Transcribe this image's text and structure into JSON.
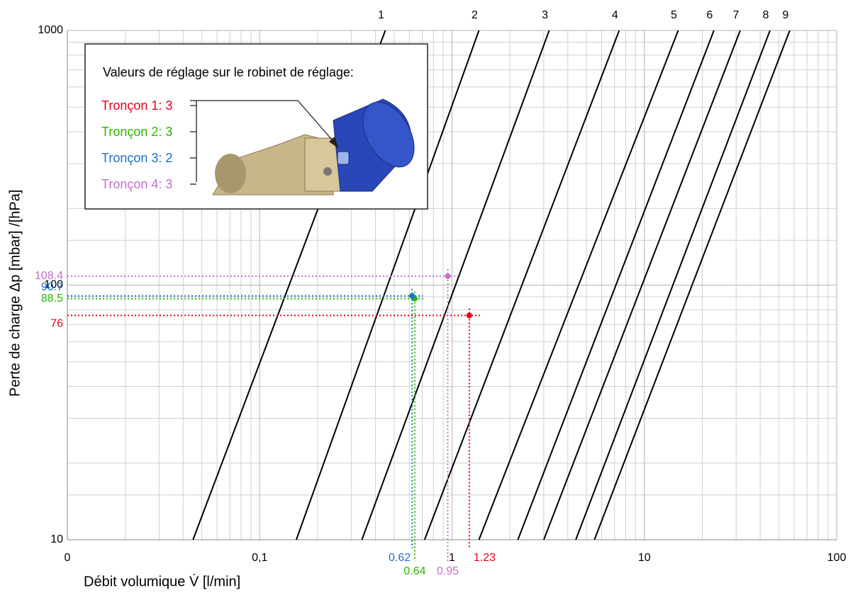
{
  "chart_data": {
    "type": "line",
    "x_label": "Débit volumique V̇ [l/min]",
    "y_label": "Perte de charge Δp [mbar] /[hPa]",
    "log_x": true,
    "log_y": true,
    "grid": true,
    "minor_grid": true,
    "xlim": [
      0.01,
      100
    ],
    "ylim": [
      10,
      1000
    ],
    "xticks": [
      {
        "value": 0.01,
        "label": "0"
      },
      {
        "value": 0.1,
        "label": "0,1"
      },
      1,
      10,
      100
    ],
    "yticks": [
      10,
      100,
      1000
    ],
    "series": [
      {
        "name": "1",
        "color": "#000000",
        "x": [
          0.045,
          0.45
        ],
        "y": [
          10,
          1000
        ]
      },
      {
        "name": "2",
        "color": "#000000",
        "x": [
          0.155,
          1.38
        ],
        "y": [
          10,
          1000
        ]
      },
      {
        "name": "3",
        "color": "#000000",
        "x": [
          0.34,
          3.2
        ],
        "y": [
          10,
          1000
        ]
      },
      {
        "name": "4",
        "color": "#000000",
        "x": [
          0.72,
          7.4
        ],
        "y": [
          10,
          1000
        ]
      },
      {
        "name": "5",
        "color": "#000000",
        "x": [
          1.38,
          15
        ],
        "y": [
          10,
          1000
        ]
      },
      {
        "name": "6",
        "color": "#000000",
        "x": [
          2.2,
          23
        ],
        "y": [
          10,
          1000
        ]
      },
      {
        "name": "7",
        "color": "#000000",
        "x": [
          3.0,
          31.5
        ],
        "y": [
          10,
          1000
        ]
      },
      {
        "name": "8",
        "color": "#000000",
        "x": [
          4.4,
          45
        ],
        "y": [
          10,
          1000
        ]
      },
      {
        "name": "9",
        "color": "#000000",
        "x": [
          5.5,
          57
        ],
        "y": [
          10,
          1000
        ]
      }
    ],
    "points": [
      {
        "x": 1.23,
        "y": 76,
        "color": "#e3001b"
      },
      {
        "x": 0.64,
        "y": 88.5,
        "color": "#2db400"
      },
      {
        "x": 0.62,
        "y": 90.7,
        "color": "#1f6fc5"
      },
      {
        "x": 0.95,
        "y": 108.4,
        "color": "#c86dcc"
      }
    ],
    "inset": {
      "title": "Valeurs de réglage sur le robinet de réglage:",
      "entries": [
        {
          "text": "Tronçon 1: 3",
          "color": "#e3001b"
        },
        {
          "text": "Tronçon 2: 3",
          "color": "#2db400"
        },
        {
          "text": "Tronçon 3: 2",
          "color": "#1f6fc5"
        },
        {
          "text": "Tronçon 4: 3",
          "color": "#c86dcc"
        }
      ]
    }
  }
}
